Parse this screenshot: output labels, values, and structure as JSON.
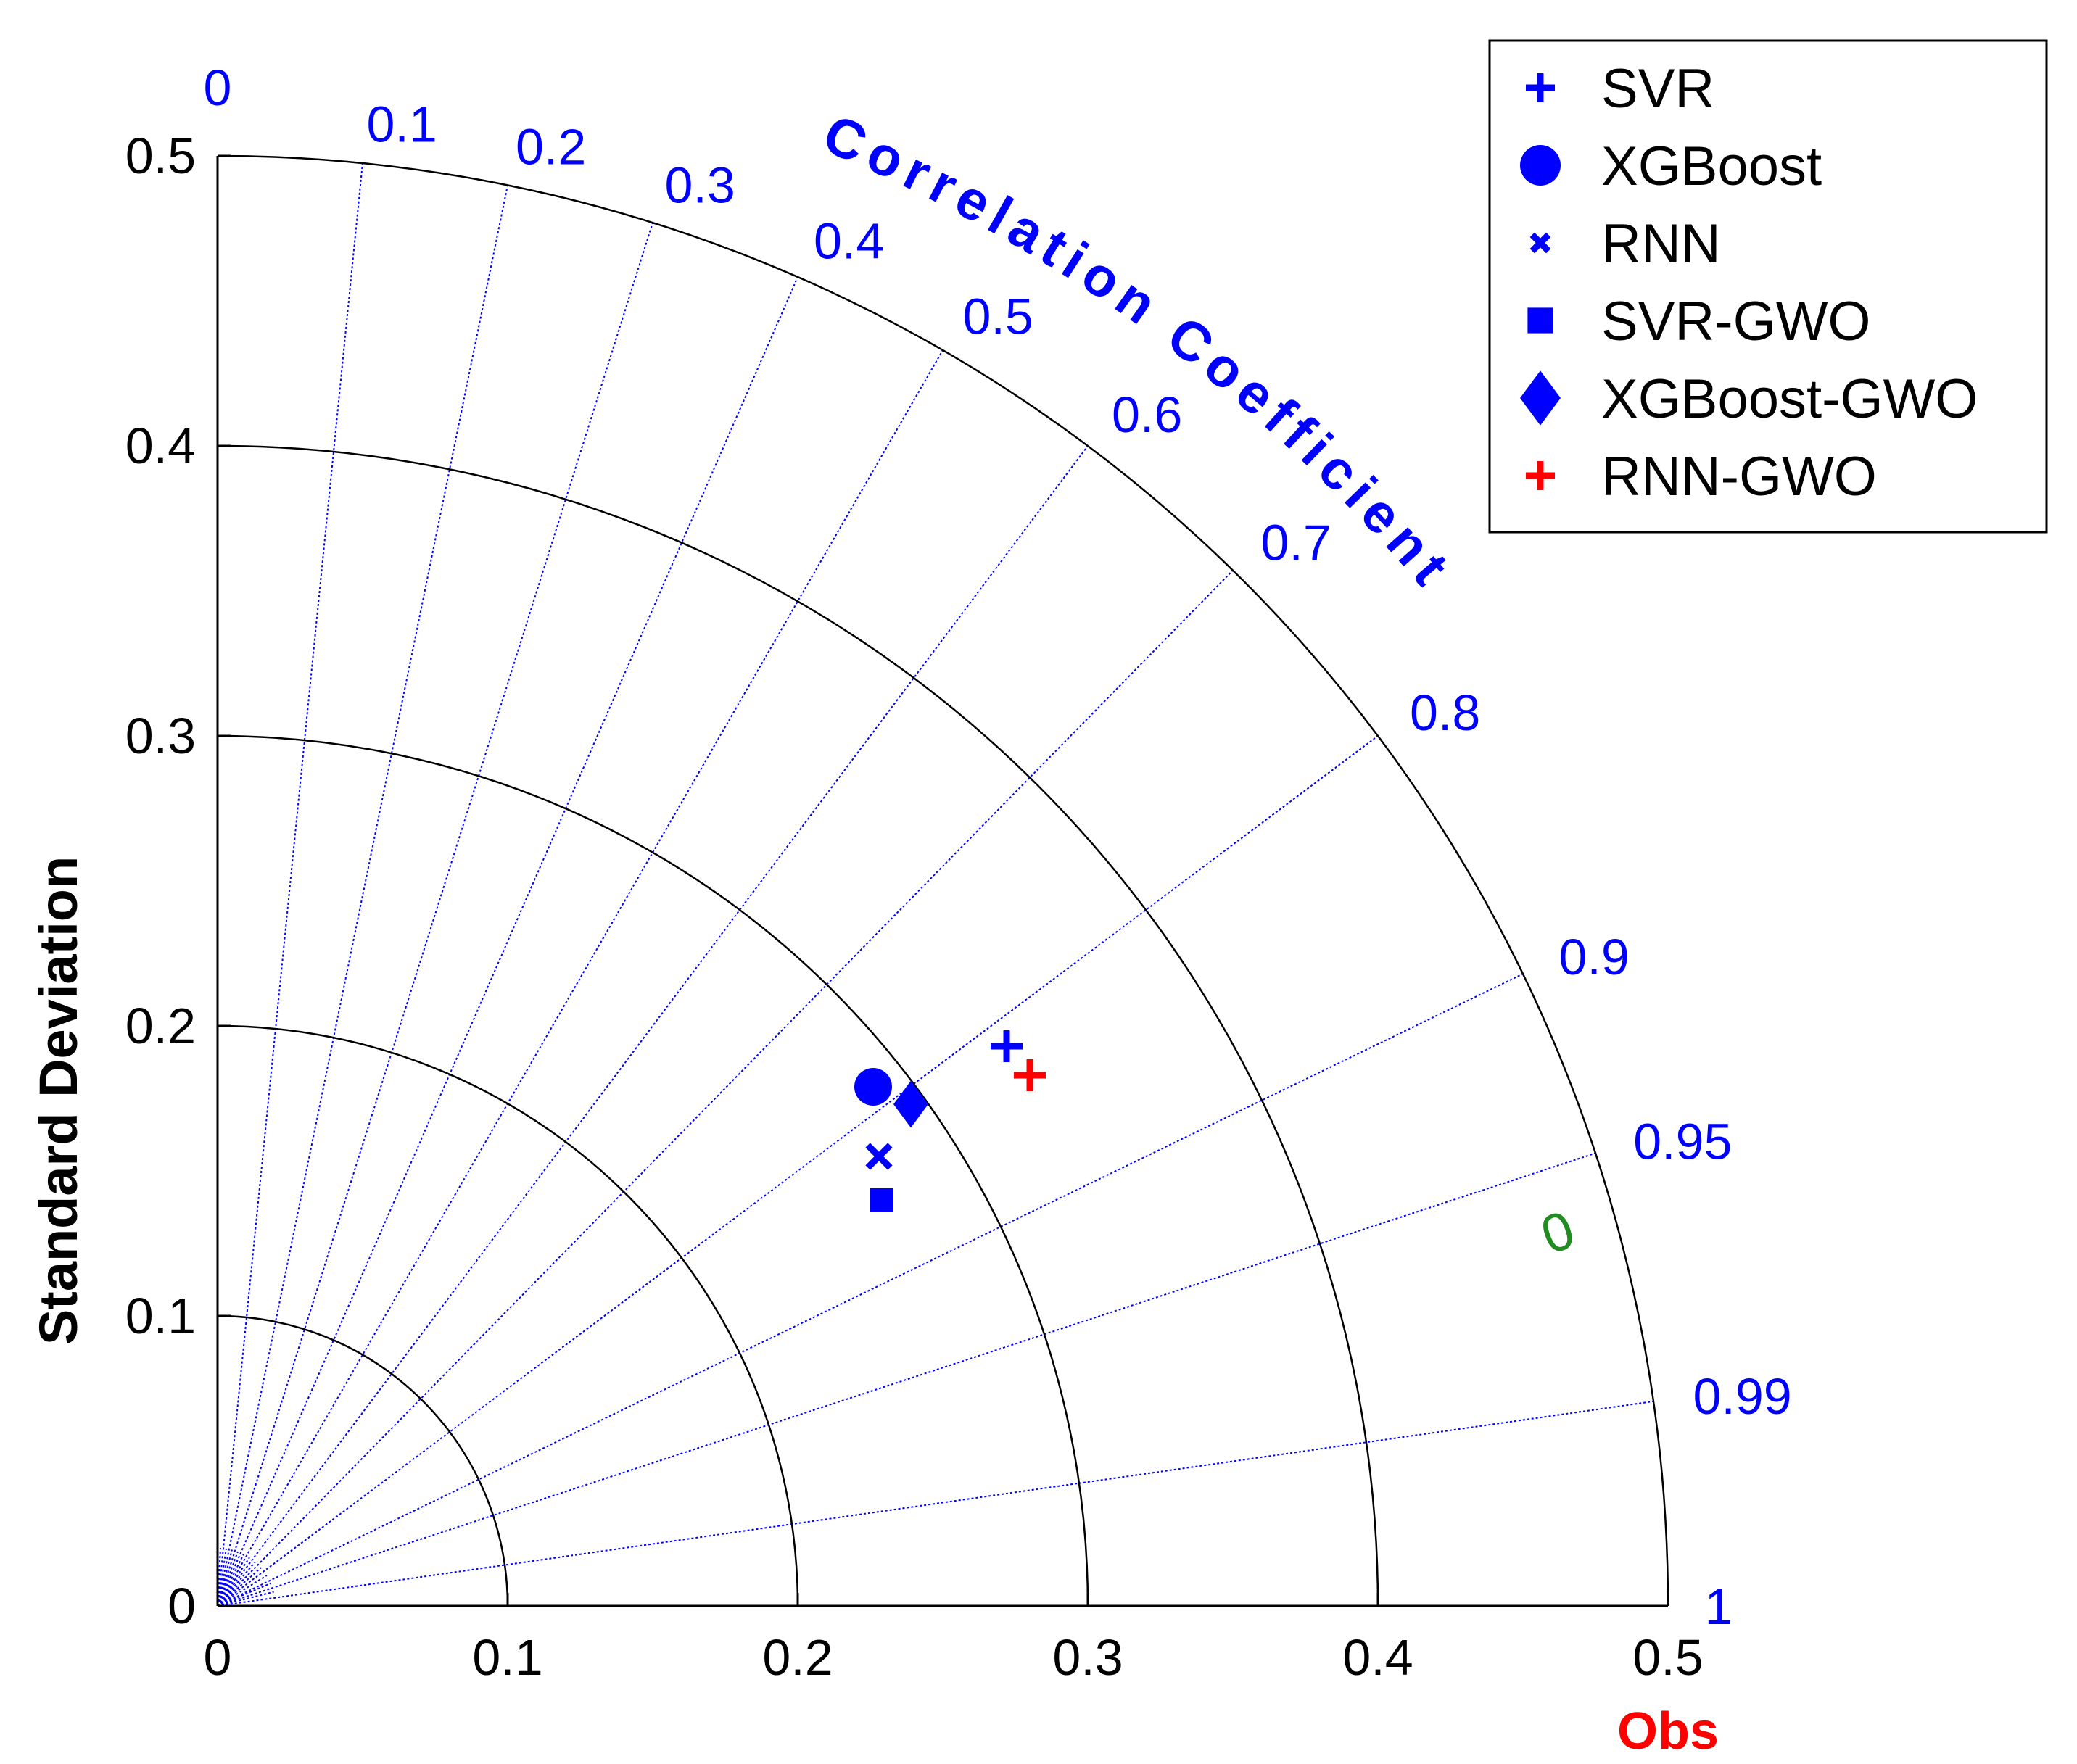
{
  "chart_data": {
    "type": "taylor-diagram",
    "ylabel": "Standard Deviation",
    "correlation_label": "Correlation Coefficient",
    "obs_label": "Obs",
    "std_ticks": [
      "0",
      "0.1",
      "0.2",
      "0.3",
      "0.4",
      "0.5"
    ],
    "std_range": [
      0,
      0.5
    ],
    "std_arcs": [
      0.1,
      0.2,
      0.3,
      0.4,
      0.5
    ],
    "correlation_ticks": [
      {
        "value": 0,
        "label": "0"
      },
      {
        "value": 0.1,
        "label": "0.1"
      },
      {
        "value": 0.2,
        "label": "0.2"
      },
      {
        "value": 0.3,
        "label": "0.3"
      },
      {
        "value": 0.4,
        "label": "0.4"
      },
      {
        "value": 0.5,
        "label": "0.5"
      },
      {
        "value": 0.6,
        "label": "0.6"
      },
      {
        "value": 0.7,
        "label": "0.7"
      },
      {
        "value": 0.8,
        "label": "0.8"
      },
      {
        "value": 0.9,
        "label": "0.9"
      },
      {
        "value": 0.95,
        "label": "0.95"
      },
      {
        "value": 0.99,
        "label": "0.99"
      },
      {
        "value": 1,
        "label": "1"
      }
    ],
    "rms_contour": {
      "label": "0",
      "color": "#228B22"
    },
    "series": [
      {
        "name": "SVR",
        "marker": "plus",
        "color": "#0000FF",
        "x": 0.272,
        "y": 0.193
      },
      {
        "name": "XGBoost",
        "marker": "circle",
        "color": "#0000FF",
        "x": 0.226,
        "y": 0.179
      },
      {
        "name": "RNN",
        "marker": "x",
        "color": "#0000FF",
        "x": 0.228,
        "y": 0.155
      },
      {
        "name": "SVR-GWO",
        "marker": "square",
        "color": "#0000FF",
        "x": 0.229,
        "y": 0.14
      },
      {
        "name": "XGBoost-GWO",
        "marker": "diamond",
        "color": "#0000FF",
        "x": 0.239,
        "y": 0.173
      },
      {
        "name": "RNN-GWO",
        "marker": "plus",
        "color": "#FF0000",
        "x": 0.28,
        "y": 0.183
      }
    ],
    "colors": {
      "correlation": "#0000FF",
      "obs": "#FF0000",
      "grid": "#000000",
      "rms": "#228B22"
    },
    "legend_position": "top-right"
  }
}
